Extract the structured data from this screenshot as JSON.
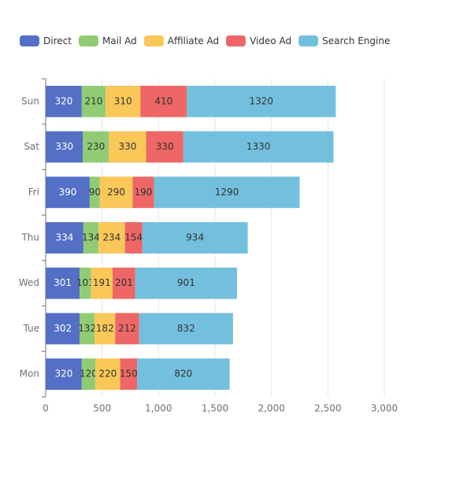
{
  "chart_data": {
    "type": "bar",
    "orientation": "horizontal",
    "stacked": true,
    "categories": [
      "Mon",
      "Tue",
      "Wed",
      "Thu",
      "Fri",
      "Sat",
      "Sun"
    ],
    "series": [
      {
        "name": "Direct",
        "color": "#5470c6",
        "label_color": "#ffffff",
        "values": [
          320,
          302,
          301,
          334,
          390,
          330,
          320
        ]
      },
      {
        "name": "Mail Ad",
        "color": "#91cc75",
        "label_color": "#333333",
        "values": [
          120,
          132,
          101,
          134,
          90,
          230,
          210
        ]
      },
      {
        "name": "Affiliate Ad",
        "color": "#fac858",
        "label_color": "#333333",
        "values": [
          220,
          182,
          191,
          234,
          290,
          330,
          310
        ]
      },
      {
        "name": "Video Ad",
        "color": "#ee6666",
        "label_color": "#333333",
        "values": [
          150,
          212,
          201,
          154,
          190,
          330,
          410
        ]
      },
      {
        "name": "Search Engine",
        "color": "#73c0de",
        "label_color": "#333333",
        "values": [
          820,
          832,
          901,
          934,
          1290,
          1330,
          1320
        ]
      }
    ],
    "xlim": [
      0,
      3000
    ],
    "x_ticks": [
      "0",
      "500",
      "1,000",
      "1,500",
      "2,000",
      "2,500",
      "3,000"
    ],
    "x_tick_values": [
      0,
      500,
      1000,
      1500,
      2000,
      2500,
      3000
    ],
    "legend_position": "top-left",
    "grid": "vertical",
    "xlabel": "",
    "ylabel": "",
    "title": ""
  }
}
